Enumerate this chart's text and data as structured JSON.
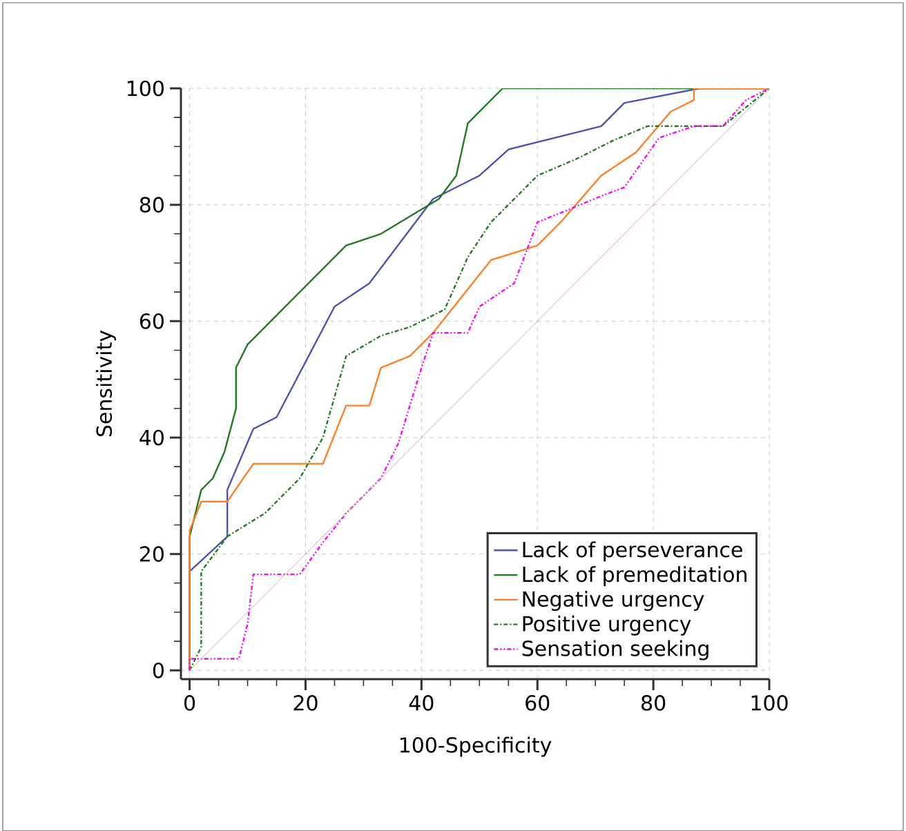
{
  "chart_data": {
    "type": "line",
    "xlabel": "100-Specificity",
    "ylabel": "Sensitivity",
    "xlim": [
      -1.5,
      100
    ],
    "ylim": [
      -1.5,
      100
    ],
    "xticks": [
      0,
      20,
      40,
      60,
      80,
      100
    ],
    "yticks": [
      0,
      20,
      40,
      60,
      80,
      100
    ],
    "grid": true,
    "legend": "bottom right",
    "marker": "none",
    "series": [
      {
        "name": "Lack of perseverance",
        "color": "#5050b0",
        "line_style": "solid",
        "x": [
          0,
          0,
          6.5,
          6.5,
          11,
          15,
          25,
          31,
          42,
          50,
          55,
          71,
          75,
          88,
          100
        ],
        "values": [
          0,
          17,
          23,
          31,
          41.5,
          43.5,
          62.5,
          66.5,
          81,
          85,
          89.5,
          93.5,
          97.5,
          100,
          100
        ]
      },
      {
        "name": "Lack of premeditation",
        "color": "#1e7b1e",
        "line_style": "solid",
        "x": [
          0,
          0,
          2,
          4,
          6,
          8,
          8,
          10,
          27,
          33,
          43,
          46,
          48,
          54,
          100
        ],
        "values": [
          0,
          23,
          31,
          33,
          37.5,
          45,
          52,
          56,
          73,
          75,
          81,
          85,
          94,
          100,
          100
        ]
      },
      {
        "name": "Negative urgency",
        "color": "#ff7f27",
        "line_style": "solid",
        "x": [
          0,
          0,
          2,
          6.5,
          11,
          23,
          27,
          31,
          33,
          38,
          42,
          52,
          60,
          64,
          71,
          77,
          83,
          87,
          87,
          100
        ],
        "values": [
          0,
          24,
          29,
          29,
          35.5,
          35.5,
          45.5,
          45.5,
          52,
          54,
          58,
          70.5,
          73,
          77,
          85,
          89,
          96,
          98,
          100,
          100
        ]
      },
      {
        "name": "Positive urgency",
        "color": "#1e7b1e",
        "line_style": "dashdot",
        "x": [
          0,
          2,
          2,
          6.5,
          13,
          19,
          23,
          27,
          33,
          38,
          44,
          48,
          52,
          60,
          67,
          73,
          79,
          87,
          92,
          100
        ],
        "values": [
          0,
          4,
          17,
          23,
          27,
          33,
          40,
          54,
          57.5,
          59,
          62,
          71,
          77,
          85,
          88,
          91,
          93.5,
          93.5,
          93.5,
          100
        ]
      },
      {
        "name": "Sensation seeking",
        "color": "#ff00ff",
        "line_style": "dashdotdot",
        "x": [
          0,
          0,
          8.5,
          10,
          11,
          19,
          23,
          27,
          33,
          36,
          40,
          42,
          48,
          50,
          56,
          60,
          65,
          71,
          75,
          81,
          87,
          92,
          96,
          100
        ],
        "values": [
          0,
          2,
          2,
          8,
          16.5,
          16.5,
          22,
          27,
          33,
          39,
          52,
          58,
          58,
          62.5,
          66.5,
          77,
          79,
          81.5,
          83,
          91.5,
          93.5,
          93.5,
          98,
          100
        ]
      },
      {
        "color": "#d4a5a5",
        "line_style": "solid",
        "x": [
          0,
          100
        ],
        "values": [
          0,
          100
        ]
      }
    ]
  }
}
